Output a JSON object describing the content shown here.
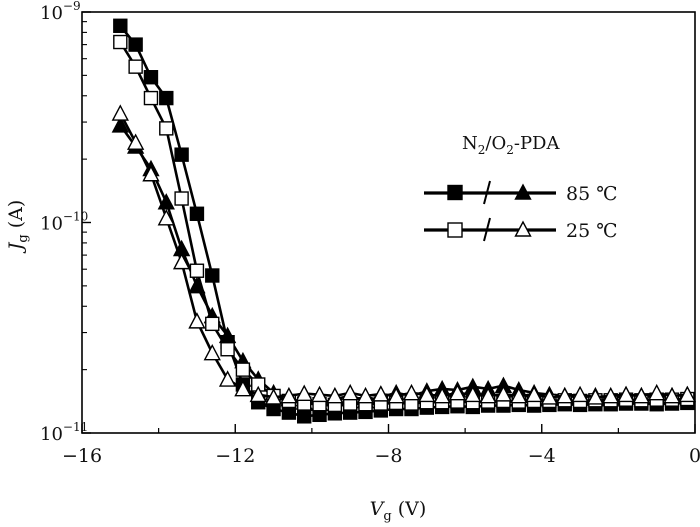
{
  "chart_data": {
    "type": "scatter",
    "title": "",
    "xlabel": {
      "symbol": "V",
      "subscript": "g",
      "unit": " (V)"
    },
    "ylabel": {
      "symbol": "J",
      "subscript": "g",
      "unit": " (A)"
    },
    "xlim": [
      -16,
      0
    ],
    "ylim": [
      1e-11,
      1e-09
    ],
    "yscale": "log",
    "grid": false,
    "x_ticks": [
      {
        "value": -16,
        "label": "−16"
      },
      {
        "value": -12,
        "label": "−12"
      },
      {
        "value": -8,
        "label": "−8"
      },
      {
        "value": -4,
        "label": "−4"
      },
      {
        "value": 0,
        "label": "0"
      }
    ],
    "y_ticks": [
      {
        "value": 1e-11,
        "base": "10",
        "exp": "−11"
      },
      {
        "value": 1e-10,
        "base": "10",
        "exp": "−10"
      },
      {
        "value": 1e-09,
        "base": "10",
        "exp": "−9"
      }
    ],
    "legend": {
      "placement": "right",
      "title": {
        "parts": [
          "N",
          "2",
          "/O",
          "2",
          "-PDA"
        ]
      },
      "entries": [
        {
          "label": "85 ℃",
          "markers": [
            "filled-square",
            "filled-triangle"
          ]
        },
        {
          "label": "25 ℃",
          "markers": [
            "open-square",
            "open-triangle"
          ]
        }
      ]
    },
    "series": [
      {
        "marker": "filled-square",
        "color": "#000000",
        "x": [
          -15.0,
          -14.6,
          -14.2,
          -13.8,
          -13.4,
          -13.0,
          -12.6,
          -12.2,
          -11.8,
          -11.4,
          -11.0,
          -10.6,
          -10.2,
          -9.8,
          -9.4,
          -9.0,
          -8.6,
          -8.2,
          -7.8,
          -7.4,
          -7.0,
          -6.6,
          -6.2,
          -5.8,
          -5.4,
          -5.0,
          -4.6,
          -4.2,
          -3.8,
          -3.4,
          -3.0,
          -2.6,
          -2.2,
          -1.8,
          -1.4,
          -1.0,
          -0.6,
          -0.2
        ],
        "y": [
          8.6e-10,
          7e-10,
          4.9e-10,
          3.9e-10,
          2.1e-10,
          1.1e-10,
          5.6e-11,
          2.7e-11,
          1.7e-11,
          1.4e-11,
          1.3e-11,
          1.25e-11,
          1.2e-11,
          1.22e-11,
          1.24e-11,
          1.25e-11,
          1.26e-11,
          1.28e-11,
          1.3e-11,
          1.3e-11,
          1.32e-11,
          1.33e-11,
          1.34e-11,
          1.33e-11,
          1.35e-11,
          1.35e-11,
          1.36e-11,
          1.35e-11,
          1.36e-11,
          1.37e-11,
          1.36e-11,
          1.37e-11,
          1.37e-11,
          1.38e-11,
          1.38e-11,
          1.37e-11,
          1.38e-11,
          1.39e-11
        ]
      },
      {
        "marker": "filled-triangle",
        "color": "#000000",
        "x": [
          -15.0,
          -14.6,
          -14.2,
          -13.8,
          -13.4,
          -13.0,
          -12.6,
          -12.2,
          -11.8,
          -11.4,
          -11.0,
          -10.6,
          -10.2,
          -9.8,
          -9.4,
          -9.0,
          -8.6,
          -8.2,
          -7.8,
          -7.4,
          -7.0,
          -6.6,
          -6.2,
          -5.8,
          -5.4,
          -5.0,
          -4.6,
          -4.2,
          -3.8,
          -3.4,
          -3.0,
          -2.6,
          -2.2,
          -1.8,
          -1.4,
          -1.0,
          -0.6,
          -0.2
        ],
        "y": [
          2.9e-10,
          2.3e-10,
          1.8e-10,
          1.25e-10,
          7.5e-11,
          5e-11,
          3.6e-11,
          2.9e-11,
          2.2e-11,
          1.8e-11,
          1.55e-11,
          1.45e-11,
          1.4e-11,
          1.38e-11,
          1.45e-11,
          1.5e-11,
          1.42e-11,
          1.48e-11,
          1.55e-11,
          1.5e-11,
          1.58e-11,
          1.62e-11,
          1.6e-11,
          1.66e-11,
          1.62e-11,
          1.68e-11,
          1.6e-11,
          1.55e-11,
          1.52e-11,
          1.5e-11,
          1.48e-11,
          1.5e-11,
          1.45e-11,
          1.52e-11,
          1.5e-11,
          1.48e-11,
          1.5e-11,
          1.52e-11
        ]
      },
      {
        "marker": "open-square",
        "color": "#000000",
        "x": [
          -15.0,
          -14.6,
          -14.2,
          -13.8,
          -13.4,
          -13.0,
          -12.6,
          -12.2,
          -11.8,
          -11.4,
          -11.0,
          -10.6,
          -10.2,
          -9.8,
          -9.4,
          -9.0,
          -8.6,
          -8.2,
          -7.8,
          -7.4,
          -7.0,
          -6.6,
          -6.2,
          -5.8,
          -5.4,
          -5.0,
          -4.6,
          -4.2,
          -3.8,
          -3.4,
          -3.0,
          -2.6,
          -2.2,
          -1.8,
          -1.4,
          -1.0,
          -0.6,
          -0.2
        ],
        "y": [
          7.2e-10,
          5.5e-10,
          3.9e-10,
          2.8e-10,
          1.3e-10,
          5.9e-11,
          3.3e-11,
          2.5e-11,
          2e-11,
          1.7e-11,
          1.5e-11,
          1.42e-11,
          1.38e-11,
          1.37e-11,
          1.36e-11,
          1.38e-11,
          1.37e-11,
          1.38e-11,
          1.39e-11,
          1.38e-11,
          1.4e-11,
          1.4e-11,
          1.41e-11,
          1.4e-11,
          1.41e-11,
          1.42e-11,
          1.41e-11,
          1.42e-11,
          1.42e-11,
          1.43e-11,
          1.42e-11,
          1.43e-11,
          1.43e-11,
          1.44e-11,
          1.43e-11,
          1.44e-11,
          1.44e-11,
          1.45e-11
        ]
      },
      {
        "marker": "open-triangle",
        "color": "#000000",
        "x": [
          -15.0,
          -14.6,
          -14.2,
          -13.8,
          -13.4,
          -13.0,
          -12.6,
          -12.2,
          -11.8,
          -11.4,
          -11.0,
          -10.6,
          -10.2,
          -9.8,
          -9.4,
          -9.0,
          -8.6,
          -8.2,
          -7.8,
          -7.4,
          -7.0,
          -6.6,
          -6.2,
          -5.8,
          -5.4,
          -5.0,
          -4.6,
          -4.2,
          -3.8,
          -3.4,
          -3.0,
          -2.6,
          -2.2,
          -1.8,
          -1.4,
          -1.0,
          -0.6,
          -0.2
        ],
        "y": [
          3.3e-10,
          2.4e-10,
          1.7e-10,
          1.05e-10,
          6.5e-11,
          3.4e-11,
          2.4e-11,
          1.8e-11,
          1.62e-11,
          1.52e-11,
          1.48e-11,
          1.5e-11,
          1.54e-11,
          1.52e-11,
          1.5e-11,
          1.55e-11,
          1.5e-11,
          1.53e-11,
          1.5e-11,
          1.55e-11,
          1.52e-11,
          1.5e-11,
          1.55e-11,
          1.52e-11,
          1.5e-11,
          1.53e-11,
          1.5e-11,
          1.52e-11,
          1.48e-11,
          1.5e-11,
          1.52e-11,
          1.48e-11,
          1.5e-11,
          1.52e-11,
          1.5e-11,
          1.55e-11,
          1.5e-11,
          1.52e-11
        ]
      }
    ]
  }
}
